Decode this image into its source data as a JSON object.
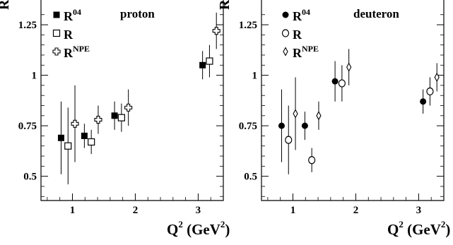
{
  "chart_data": [
    {
      "type": "scatter",
      "title": "",
      "panel_label": "proton",
      "ylabel": "R",
      "xlabel": {
        "main": "Q",
        "sup": "2",
        "unit": " (GeV",
        "unit_sup": "2",
        "close": ")"
      },
      "xlim": [
        0.5,
        3.4
      ],
      "ylim": [
        0.38,
        1.39
      ],
      "xticks": [
        1,
        2,
        3
      ],
      "yticks": [
        0.5,
        0.75,
        1,
        1.25
      ],
      "ytick_labels": [
        "0.5",
        "0.75",
        "1",
        "1.25"
      ],
      "xtick_labels": [
        "1",
        "2",
        "3"
      ],
      "grid": false,
      "legend_position": "top-left",
      "series": [
        {
          "name": "R",
          "sup": "04",
          "marker": "filled-square",
          "points": [
            {
              "x": 0.82,
              "y": 0.69,
              "err": 0.18
            },
            {
              "x": 1.19,
              "y": 0.7,
              "err": 0.06
            },
            {
              "x": 1.67,
              "y": 0.8,
              "err": 0.07
            },
            {
              "x": 3.07,
              "y": 1.05,
              "err": 0.07
            }
          ]
        },
        {
          "name": "R",
          "sup": "",
          "marker": "open-square",
          "points": [
            {
              "x": 0.93,
              "y": 0.65,
              "err": 0.19
            },
            {
              "x": 1.3,
              "y": 0.67,
              "err": 0.06
            },
            {
              "x": 1.78,
              "y": 0.79,
              "err": 0.07
            },
            {
              "x": 3.18,
              "y": 1.07,
              "err": 0.08
            }
          ]
        },
        {
          "name": "R",
          "sup": "NPE",
          "marker": "open-cross",
          "points": [
            {
              "x": 1.04,
              "y": 0.76,
              "err": 0.19
            },
            {
              "x": 1.41,
              "y": 0.78,
              "err": 0.07
            },
            {
              "x": 1.89,
              "y": 0.84,
              "err": 0.09
            },
            {
              "x": 3.29,
              "y": 1.22,
              "err": 0.09
            }
          ]
        }
      ]
    },
    {
      "type": "scatter",
      "title": "",
      "panel_label": "deuteron",
      "ylabel": "R",
      "xlabel": {
        "main": "Q",
        "sup": "2",
        "unit": " (GeV",
        "unit_sup": "2",
        "close": ")"
      },
      "xlim": [
        0.5,
        3.4
      ],
      "ylim": [
        0.38,
        1.39
      ],
      "xticks": [
        1,
        2,
        3
      ],
      "yticks": [
        0.5,
        0.75,
        1,
        1.25
      ],
      "ytick_labels": [
        "0.5",
        "0.75",
        "1",
        "1.25"
      ],
      "xtick_labels": [
        "1",
        "2",
        "3"
      ],
      "grid": false,
      "legend_position": "top-left",
      "series": [
        {
          "name": "R",
          "sup": "04",
          "marker": "filled-circle",
          "points": [
            {
              "x": 0.82,
              "y": 0.75,
              "err": 0.18
            },
            {
              "x": 1.19,
              "y": 0.75,
              "err": 0.07
            },
            {
              "x": 1.67,
              "y": 0.97,
              "err": 0.1
            },
            {
              "x": 3.07,
              "y": 0.87,
              "err": 0.06
            }
          ]
        },
        {
          "name": "R",
          "sup": "",
          "marker": "open-circle",
          "points": [
            {
              "x": 0.93,
              "y": 0.68,
              "err": 0.17
            },
            {
              "x": 1.3,
              "y": 0.58,
              "err": 0.06
            },
            {
              "x": 1.78,
              "y": 0.96,
              "err": 0.09
            },
            {
              "x": 3.18,
              "y": 0.92,
              "err": 0.07
            }
          ]
        },
        {
          "name": "R",
          "sup": "NPE",
          "marker": "open-diamond",
          "points": [
            {
              "x": 1.04,
              "y": 0.81,
              "err": 0.18
            },
            {
              "x": 1.41,
              "y": 0.8,
              "err": 0.07
            },
            {
              "x": 1.89,
              "y": 1.04,
              "err": 0.09
            },
            {
              "x": 3.29,
              "y": 0.99,
              "err": 0.07
            }
          ]
        }
      ]
    }
  ]
}
